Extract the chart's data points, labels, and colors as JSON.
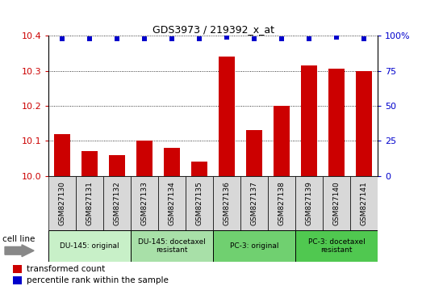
{
  "title": "GDS3973 / 219392_x_at",
  "samples": [
    "GSM827130",
    "GSM827131",
    "GSM827132",
    "GSM827133",
    "GSM827134",
    "GSM827135",
    "GSM827136",
    "GSM827137",
    "GSM827138",
    "GSM827139",
    "GSM827140",
    "GSM827141"
  ],
  "bar_values": [
    10.12,
    10.07,
    10.06,
    10.1,
    10.08,
    10.04,
    10.34,
    10.13,
    10.2,
    10.315,
    10.305,
    10.3
  ],
  "percentile_values": [
    98,
    98,
    98,
    98,
    98,
    98,
    99,
    98,
    98,
    98,
    99,
    98
  ],
  "bar_color": "#cc0000",
  "percentile_color": "#0000cc",
  "ylim_left": [
    10.0,
    10.4
  ],
  "ylim_right": [
    0,
    100
  ],
  "yticks_left": [
    10.0,
    10.1,
    10.2,
    10.3,
    10.4
  ],
  "yticks_right": [
    0,
    25,
    50,
    75,
    100
  ],
  "groups": [
    {
      "label": "DU-145: original",
      "start": 0,
      "end": 3,
      "color": "#c8f0c8"
    },
    {
      "label": "DU-145: docetaxel\nresistant",
      "start": 3,
      "end": 6,
      "color": "#a8e0a8"
    },
    {
      "label": "PC-3: original",
      "start": 6,
      "end": 9,
      "color": "#70d070"
    },
    {
      "label": "PC-3: docetaxel\nresistant",
      "start": 9,
      "end": 12,
      "color": "#50c850"
    }
  ],
  "cell_line_label": "cell line",
  "legend_bar_label": "transformed count",
  "legend_dot_label": "percentile rank within the sample",
  "background_color": "#ffffff",
  "plot_bg_color": "#ffffff",
  "xlabel_bg_color": "#d8d8d8",
  "group_border_color": "#888888"
}
